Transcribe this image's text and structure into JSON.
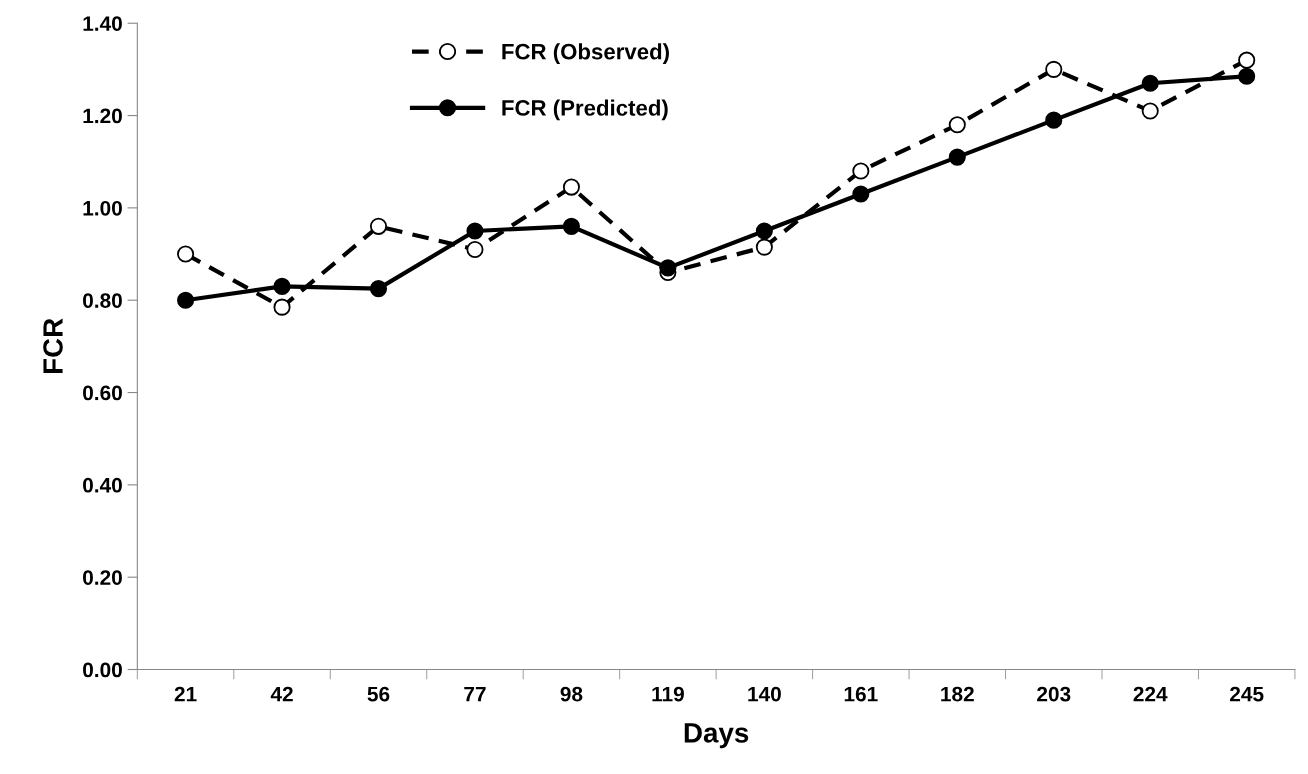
{
  "chart_data": {
    "type": "line",
    "xlabel": "Days",
    "ylabel": "FCR",
    "categories": [
      "21",
      "42",
      "56",
      "77",
      "98",
      "119",
      "140",
      "161",
      "182",
      "203",
      "224",
      "245"
    ],
    "ylim": [
      0,
      1.4
    ],
    "yticks": [
      {
        "value": 0,
        "label": "0.00"
      },
      {
        "value": 0.2,
        "label": "0.20"
      },
      {
        "value": 0.4,
        "label": "0.40"
      },
      {
        "value": 0.6,
        "label": "0.60"
      },
      {
        "value": 0.8,
        "label": "0.80"
      },
      {
        "value": 1.0,
        "label": "1.00"
      },
      {
        "value": 1.2,
        "label": "1.20"
      },
      {
        "value": 1.4,
        "label": "1.40"
      }
    ],
    "grid": false,
    "legend": "top left",
    "marker": "circle",
    "series": [
      {
        "name": "FCR (Observed)",
        "color": "#000000",
        "line_style": "dashed",
        "values": [
          0.9,
          0.785,
          0.96,
          0.91,
          1.045,
          0.86,
          0.915,
          1.08,
          1.18,
          1.3,
          1.21,
          1.32
        ]
      },
      {
        "name": "FCR (Predicted)",
        "color": "#000000",
        "line_style": "solid",
        "values": [
          0.8,
          0.83,
          0.825,
          0.95,
          0.96,
          0.87,
          0.95,
          1.03,
          1.11,
          1.19,
          1.27,
          1.285
        ]
      }
    ]
  }
}
